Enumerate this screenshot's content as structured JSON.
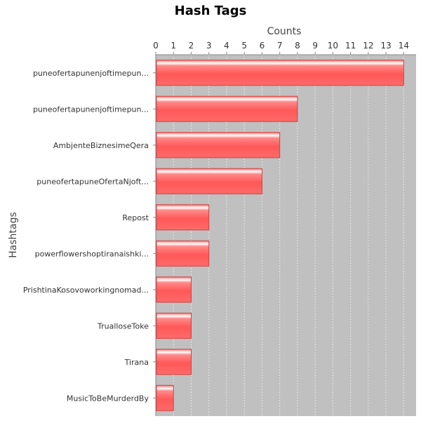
{
  "chart_data": {
    "type": "bar",
    "orientation": "horizontal",
    "title": "Hash Tags",
    "xlabel": "Counts",
    "ylabel": "Hashtags",
    "xlim": [
      0,
      14.7
    ],
    "x_ticks": [
      "0",
      "1",
      "2",
      "3",
      "4",
      "5",
      "6",
      "7",
      "8",
      "9",
      "10",
      "11",
      "12",
      "13",
      "14"
    ],
    "x_axis_position": "top",
    "grid": true,
    "legend": "none",
    "categories": [
      "puneofertapunenjoftimepun...",
      "puneofertapunenjoftimepun...",
      "AmbjenteBiznesimeQera",
      "puneofertapuneOfertaNjoft...",
      "Repost",
      "powerflowershoptiranaishki...",
      "PrishtinaKosovoworkingnomad...",
      "TrualloseToke",
      "Tirana",
      "MusicToBeMurderdBy"
    ],
    "values": [
      14,
      8,
      7,
      6,
      3,
      3,
      2,
      2,
      2,
      1
    ],
    "colors": {
      "bar": "#ff6060",
      "bar_highlight": "#ffd4d4",
      "bar_edge": "#d04040",
      "plot_background": "#c0c0c0",
      "grid": "#e6e6e6"
    }
  }
}
